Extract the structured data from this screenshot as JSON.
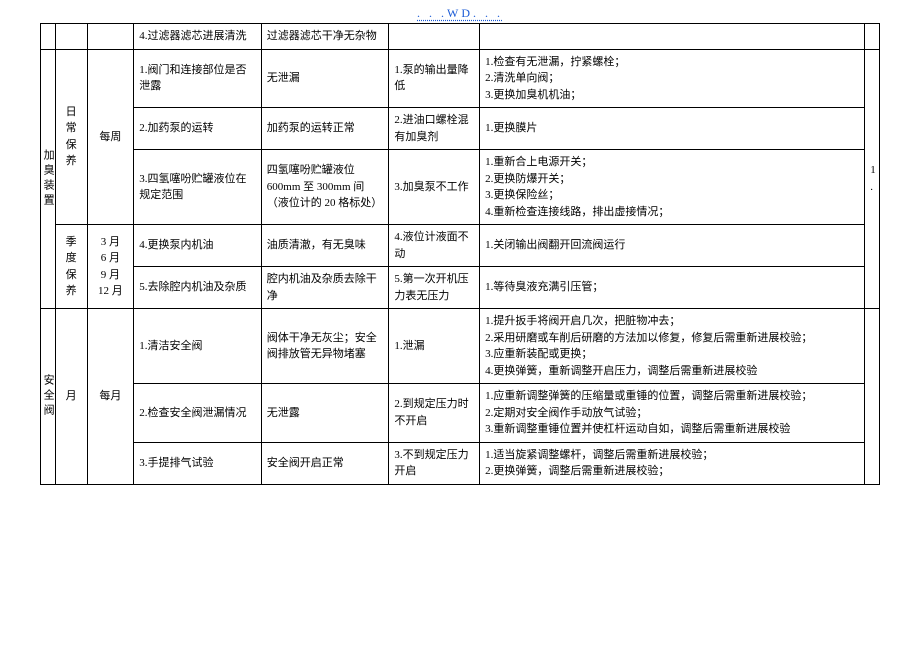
{
  "header": ". . .WD. . .",
  "rows": [
    {
      "c0": "",
      "c1": "",
      "c2": "",
      "c3": "4.过滤器滤芯进展清洗",
      "c4": "过滤器滤芯干净无杂物",
      "c5": "",
      "c6": "",
      "c7": ""
    },
    {
      "c0": "加臭装置",
      "c1": "日常保养",
      "c2": "每周",
      "c3": "1.阀门和连接部位是否泄露",
      "c4": "无泄漏",
      "c5": "1.泵的输出量降低",
      "c6": "1.检查有无泄漏，拧紧螺栓；\n2.清洗单向阀；\n3.更换加臭机机油；",
      "c7": "1."
    },
    {
      "c3": "2.加药泵的运转",
      "c4": "加药泵的运转正常",
      "c5": "2.进油口螺栓混有加臭剂",
      "c6": "1.更换膜片"
    },
    {
      "c3": "3.四氢噻吩贮罐液位在规定范围",
      "c4": "四氢噻吩贮罐液位 600mm 至 300mm 间（液位计的 20 格标处）",
      "c5": "3.加臭泵不工作",
      "c6": "1.重新合上电源开关；\n2.更换防爆开关；\n3.更换保险丝；\n4.重新检查连接线路，排出虚接情况；"
    },
    {
      "c1": "季度保养",
      "c2": "3 月\n6 月\n9 月\n12 月",
      "c3": "4.更换泵内机油",
      "c4": "油质清澈，有无臭味",
      "c5": "4.液位计液面不动",
      "c6": "1.关闭输出阀翻开回流阀运行"
    },
    {
      "c3": "5.去除腔内机油及杂质",
      "c4": "腔内机油及杂质去除干净",
      "c5": "5.第一次开机压力表无压力",
      "c6": "1.等待臭液充满引压管；"
    },
    {
      "c0": "安全阀",
      "c1": "月",
      "c2": "每月",
      "c3": "1.清洁安全阀",
      "c4": "阀体干净无灰尘；安全阀排放管无异物堵塞",
      "c5": "1.泄漏",
      "c6": "1.提升扳手将阀开启几次，把脏物冲去；\n2.采用研磨或车削后研磨的方法加以修复，修复后需重新进展校验；\n3.应重新装配或更换；\n4.更换弹簧，重新调整开启压力，调整后需重新进展校验",
      "c7": ""
    },
    {
      "c3": "2.检查安全阀泄漏情况",
      "c4": "无泄露",
      "c5": "2.到规定压力时不开启",
      "c6": "1.应重新调整弹簧的压缩量或重锤的位置，调整后需重新进展校验；\n2.定期对安全阀作手动放气试验；\n3.重新调整重锤位置并使杠杆运动自如，调整后需重新进展校验"
    },
    {
      "c3": "3.手提排气试验",
      "c4": "安全阀开启正常",
      "c5": "3.不到规定压力开启",
      "c6": "1.适当旋紧调整螺杆，调整后需重新进展校验；\n2.更换弹簧，调整后需重新进展校验；"
    }
  ]
}
